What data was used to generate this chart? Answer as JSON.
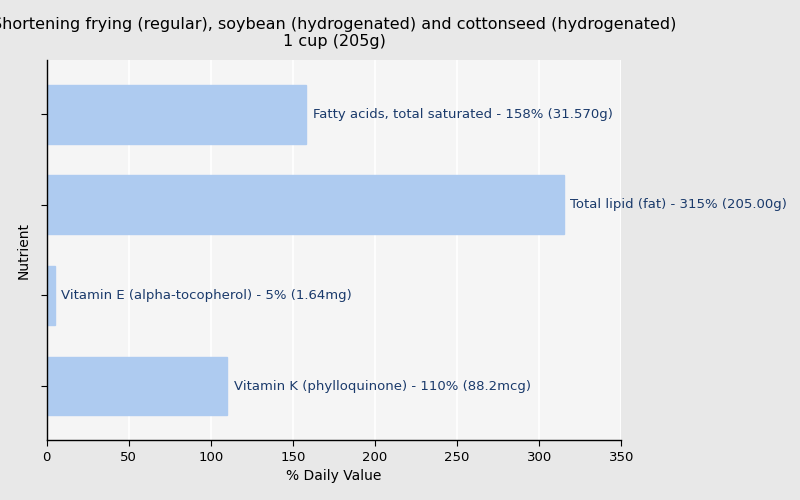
{
  "title_line1": "Shortening frying (regular), soybean (hydrogenated) and cottonseed (hydrogenated)",
  "title_line2": "1 cup (205g)",
  "xlabel": "% Daily Value",
  "ylabel": "Nutrient",
  "figure_bg": "#e8e8e8",
  "plot_bg": "#f5f5f5",
  "bar_color": "#aecbf0",
  "text_color": "#1a3a6b",
  "bars": [
    {
      "label": "Fatty acids, total saturated - 158% (31.570g)",
      "value": 158
    },
    {
      "label": "Total lipid (fat) - 315% (205.00g)",
      "value": 315
    },
    {
      "label": "Vitamin E (alpha-tocopherol) - 5% (1.64mg)",
      "value": 5
    },
    {
      "label": "Vitamin K (phylloquinone) - 110% (88.2mcg)",
      "value": 110
    }
  ],
  "xlim": [
    0,
    350
  ],
  "xticks": [
    0,
    50,
    100,
    150,
    200,
    250,
    300,
    350
  ],
  "title_fontsize": 11.5,
  "label_fontsize": 9.5,
  "axis_label_fontsize": 10,
  "tick_fontsize": 9.5,
  "grid_color": "#ffffff",
  "bar_height": 0.65
}
